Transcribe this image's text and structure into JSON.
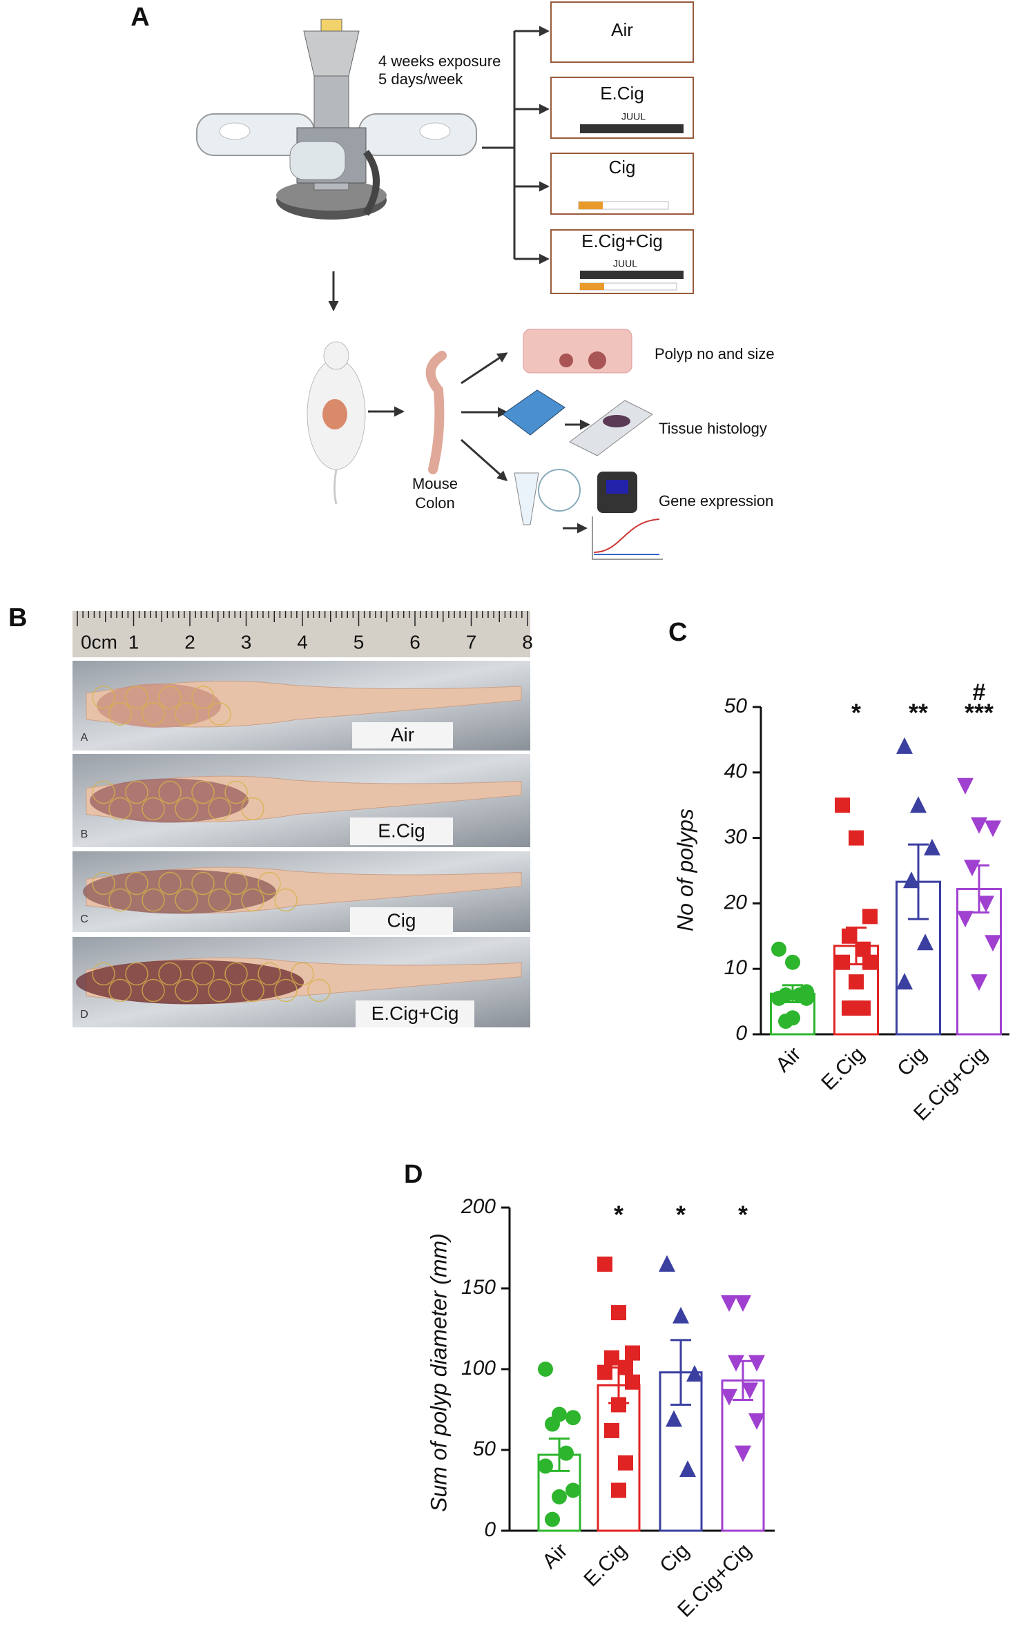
{
  "panel_a": {
    "label": "A",
    "exposure": [
      "4 weeks exposure",
      "5 days/week"
    ],
    "groups": [
      "Air",
      "E.Cig",
      "Cig",
      "E.Cig+Cig"
    ],
    "device_brand": "JUUL",
    "colon_label": [
      "Mouse",
      "Colon"
    ],
    "outputs": [
      "Polyp no and size",
      "Tissue histology",
      "Gene expression"
    ]
  },
  "panel_b": {
    "label": "B",
    "ruler": [
      "0cm",
      "1",
      "2",
      "3",
      "4",
      "5",
      "6",
      "7",
      "8"
    ],
    "rows": [
      {
        "letter": "A",
        "name": "Air"
      },
      {
        "letter": "B",
        "name": "E.Cig"
      },
      {
        "letter": "C",
        "name": "Cig"
      },
      {
        "letter": "D",
        "name": "E.Cig+Cig"
      }
    ]
  },
  "chart_data": [
    {
      "type": "bar",
      "panel": "C",
      "ylabel": "No of polyps",
      "categories": [
        "Air",
        "E.Cig",
        "Cig",
        "E.Cig+Cig"
      ],
      "colors": [
        "#2db52d",
        "#e02424",
        "#3a3fa0",
        "#a040d0"
      ],
      "markers": [
        "circle",
        "square",
        "triangle",
        "triangle-down"
      ],
      "values": [
        6.2,
        13.5,
        23.3,
        22.2
      ],
      "errors": [
        1.3,
        2.8,
        5.7,
        3.6
      ],
      "points": [
        [
          13,
          11,
          6.5,
          6,
          6,
          5.5,
          5.5,
          2.5,
          2
        ],
        [
          35,
          30,
          18,
          15,
          13,
          11,
          11,
          8,
          4,
          4,
          4
        ],
        [
          44,
          35,
          28.5,
          23.5,
          14,
          8
        ],
        [
          38,
          32,
          31.5,
          25.5,
          20,
          17.7,
          14,
          8
        ]
      ],
      "significance": [
        null,
        "*",
        "**",
        "***"
      ],
      "significance_extra": [
        null,
        null,
        null,
        "#"
      ],
      "ylim": [
        0,
        50
      ],
      "yticks": [
        0,
        10,
        20,
        30,
        40,
        50
      ]
    },
    {
      "type": "bar",
      "panel": "D",
      "ylabel": "Sum of polyp diameter (mm)",
      "categories": [
        "Air",
        "E.Cig",
        "Cig",
        "E.Cig+Cig"
      ],
      "colors": [
        "#2db52d",
        "#e02424",
        "#3a3fa0",
        "#a040d0"
      ],
      "markers": [
        "circle",
        "square",
        "triangle",
        "triangle-down"
      ],
      "values": [
        47,
        90,
        98,
        93
      ],
      "errors": [
        10,
        11,
        20,
        12
      ],
      "points": [
        [
          100,
          72,
          70,
          66,
          48,
          40,
          25,
          21,
          7
        ],
        [
          165,
          135,
          110,
          107,
          101,
          98,
          92,
          78,
          62,
          42,
          25
        ],
        [
          165,
          133,
          97,
          69,
          38
        ],
        [
          141,
          141,
          104,
          104,
          87,
          83,
          68,
          48
        ]
      ],
      "significance": [
        null,
        "*",
        "*",
        "*"
      ],
      "ylim": [
        0,
        200
      ],
      "yticks": [
        0,
        50,
        100,
        150,
        200
      ]
    }
  ]
}
